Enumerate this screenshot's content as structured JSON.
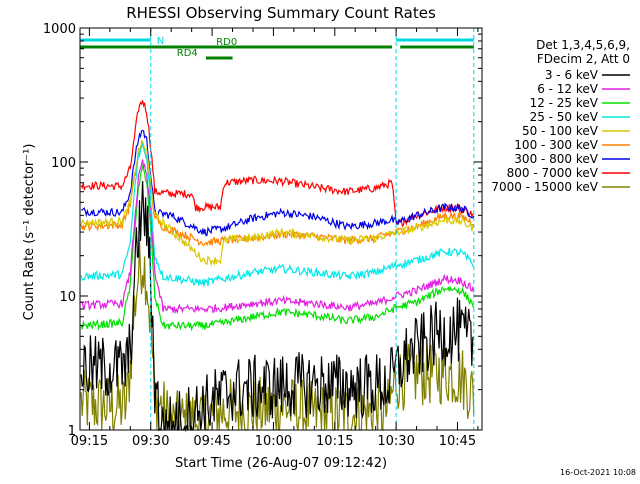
{
  "chart_data": {
    "type": "line",
    "title": "RHESSI Observing Summary Count Rates",
    "xlabel": "Start Time (26-Aug-07 09:12:42)",
    "ylabel": "Count Rate (s⁻¹ detector⁻¹)",
    "y_scale": "log",
    "ylim": [
      1,
      1000
    ],
    "xlim": [
      "09:12:42",
      "10:51:00"
    ],
    "x_ticks": [
      "09:15",
      "09:30",
      "09:45",
      "10:00",
      "10:15",
      "10:30",
      "10:45"
    ],
    "y_ticks": [
      "1",
      "10",
      "100",
      "1000"
    ],
    "grid": false,
    "legend_position": "top-right outside",
    "legend_header": [
      "Det 1,3,4,5,6,9,",
      "FDecim 2, Att 0"
    ],
    "footer_date": "16-Oct-2021 10:08",
    "flags": [
      {
        "label": "N",
        "color": "#00d8e0",
        "segments": [
          [
            "09:12:42",
            "09:30:00"
          ],
          [
            "10:30:00",
            "10:49:00"
          ]
        ]
      },
      {
        "label": "RD0",
        "color": "#008000",
        "segments": [
          [
            "09:12:42",
            "10:29:00"
          ],
          [
            "10:31:00",
            "10:49:00"
          ]
        ]
      },
      {
        "label": "RD4",
        "color": "#008000",
        "segments": [
          [
            "09:43:30",
            "09:50:00"
          ]
        ]
      }
    ],
    "night_markers": [
      "09:30:00",
      "10:30:00",
      "10:49:00"
    ],
    "series": [
      {
        "name": "3 - 6 keV",
        "color": "#000000",
        "points": [
          [
            "09:13",
            2.9
          ],
          [
            "09:24",
            2.9
          ],
          [
            "09:25",
            4
          ],
          [
            "09:26",
            12
          ],
          [
            "09:27",
            30
          ],
          [
            "09:28",
            46
          ],
          [
            "09:29",
            35
          ],
          [
            "09:30",
            14
          ],
          [
            "09:31",
            2.2
          ],
          [
            "09:33",
            1
          ],
          [
            "09:40",
            1.3
          ],
          [
            "09:50",
            2
          ],
          [
            "10:00",
            2.1
          ],
          [
            "10:10",
            2.2
          ],
          [
            "10:20",
            2.1
          ],
          [
            "10:28",
            2.2
          ],
          [
            "10:30",
            2.7
          ],
          [
            "10:32",
            3.4
          ],
          [
            "10:40",
            5.2
          ],
          [
            "10:45",
            5.5
          ],
          [
            "10:49",
            4.3
          ]
        ]
      },
      {
        "name": "6 - 12 keV",
        "color": "#e020e0",
        "points": [
          [
            "09:13",
            8.5
          ],
          [
            "09:23",
            8.8
          ],
          [
            "09:25",
            15
          ],
          [
            "09:26",
            35
          ],
          [
            "09:27",
            75
          ],
          [
            "09:28",
            100
          ],
          [
            "09:29",
            80
          ],
          [
            "09:30",
            40
          ],
          [
            "09:31",
            15
          ],
          [
            "09:33",
            8
          ],
          [
            "09:43",
            8
          ],
          [
            "09:48",
            8.2
          ],
          [
            "09:55",
            8.8
          ],
          [
            "10:02",
            9.2
          ],
          [
            "10:10",
            8.8
          ],
          [
            "10:18",
            8.2
          ],
          [
            "10:25",
            8.8
          ],
          [
            "10:30",
            10
          ],
          [
            "10:35",
            11
          ],
          [
            "10:42",
            13.5
          ],
          [
            "10:46",
            13
          ],
          [
            "10:49",
            11
          ]
        ]
      },
      {
        "name": "12 - 25 keV",
        "color": "#00e000",
        "points": [
          [
            "09:13",
            6
          ],
          [
            "09:23",
            6.3
          ],
          [
            "09:25",
            12
          ],
          [
            "09:26",
            30
          ],
          [
            "09:27",
            65
          ],
          [
            "09:28",
            90
          ],
          [
            "09:29",
            70
          ],
          [
            "09:30",
            32
          ],
          [
            "09:31",
            10
          ],
          [
            "09:33",
            6
          ],
          [
            "09:43",
            6
          ],
          [
            "09:48",
            6.3
          ],
          [
            "09:55",
            7
          ],
          [
            "10:02",
            7.6
          ],
          [
            "10:10",
            7.2
          ],
          [
            "10:18",
            6.5
          ],
          [
            "10:25",
            7
          ],
          [
            "10:30",
            8.2
          ],
          [
            "10:35",
            9
          ],
          [
            "10:42",
            11.5
          ],
          [
            "10:46",
            11
          ],
          [
            "10:49",
            8.5
          ]
        ]
      },
      {
        "name": "25 - 50 keV",
        "color": "#00e8e8",
        "points": [
          [
            "09:13",
            14
          ],
          [
            "09:23",
            14.5
          ],
          [
            "09:25",
            25
          ],
          [
            "09:26",
            60
          ],
          [
            "09:27",
            110
          ],
          [
            "09:28",
            135
          ],
          [
            "09:29",
            110
          ],
          [
            "09:30",
            50
          ],
          [
            "09:31",
            20
          ],
          [
            "09:33",
            14
          ],
          [
            "09:43",
            12.5
          ],
          [
            "09:48",
            13.5
          ],
          [
            "09:55",
            15
          ],
          [
            "10:02",
            16
          ],
          [
            "10:10",
            15
          ],
          [
            "10:18",
            14
          ],
          [
            "10:25",
            15
          ],
          [
            "10:30",
            17
          ],
          [
            "10:35",
            18.5
          ],
          [
            "10:42",
            21.5
          ],
          [
            "10:46",
            21
          ],
          [
            "10:49",
            17
          ]
        ]
      },
      {
        "name": "50 - 100 keV",
        "color": "#d8c800",
        "points": [
          [
            "09:13",
            35
          ],
          [
            "09:23",
            36
          ],
          [
            "09:25",
            50
          ],
          [
            "09:26",
            80
          ],
          [
            "09:27",
            120
          ],
          [
            "09:28",
            140
          ],
          [
            "09:29",
            120
          ],
          [
            "09:30",
            70
          ],
          [
            "09:31",
            40
          ],
          [
            "09:33",
            35
          ],
          [
            "09:43",
            18.5
          ],
          [
            "09:47",
            18.5
          ],
          [
            "09:48",
            26
          ],
          [
            "09:55",
            27
          ],
          [
            "10:02",
            30
          ],
          [
            "10:10",
            28
          ],
          [
            "10:18",
            26
          ],
          [
            "10:25",
            27
          ],
          [
            "10:30",
            30
          ],
          [
            "10:35",
            32
          ],
          [
            "10:42",
            37
          ],
          [
            "10:46",
            36
          ],
          [
            "10:49",
            32
          ]
        ]
      },
      {
        "name": "100 - 300 keV",
        "color": "#ff8000",
        "points": [
          [
            "09:13",
            33
          ],
          [
            "09:23",
            34
          ],
          [
            "09:25",
            48
          ],
          [
            "09:26",
            75
          ],
          [
            "09:27",
            115
          ],
          [
            "09:28",
            135
          ],
          [
            "09:29",
            110
          ],
          [
            "09:30",
            65
          ],
          [
            "09:31",
            38
          ],
          [
            "09:33",
            33
          ],
          [
            "09:43",
            25
          ],
          [
            "09:48",
            26
          ],
          [
            "09:55",
            27
          ],
          [
            "10:02",
            29
          ],
          [
            "10:10",
            28
          ],
          [
            "10:18",
            26
          ],
          [
            "10:25",
            27
          ],
          [
            "10:30",
            30
          ],
          [
            "10:35",
            33
          ],
          [
            "10:42",
            40
          ],
          [
            "10:46",
            39
          ],
          [
            "10:49",
            35
          ]
        ]
      },
      {
        "name": "300 - 800 keV",
        "color": "#0000e8",
        "points": [
          [
            "09:13",
            43
          ],
          [
            "09:23",
            42
          ],
          [
            "09:25",
            60
          ],
          [
            "09:26",
            100
          ],
          [
            "09:27",
            150
          ],
          [
            "09:28",
            175
          ],
          [
            "09:29",
            145
          ],
          [
            "09:30",
            80
          ],
          [
            "09:31",
            42
          ],
          [
            "09:35",
            40
          ],
          [
            "09:43",
            30
          ],
          [
            "09:48",
            32
          ],
          [
            "09:55",
            38
          ],
          [
            "10:02",
            42
          ],
          [
            "10:10",
            39
          ],
          [
            "10:18",
            33
          ],
          [
            "10:25",
            35
          ],
          [
            "10:29",
            37
          ],
          [
            "10:30",
            35
          ],
          [
            "10:35",
            40
          ],
          [
            "10:42",
            46
          ],
          [
            "10:46",
            45
          ],
          [
            "10:49",
            40
          ]
        ]
      },
      {
        "name": "800 - 7000 keV",
        "color": "#ff0000",
        "points": [
          [
            "09:13",
            67
          ],
          [
            "09:23",
            66
          ],
          [
            "09:25",
            90
          ],
          [
            "09:26",
            150
          ],
          [
            "09:27",
            250
          ],
          [
            "09:28",
            290
          ],
          [
            "09:29",
            240
          ],
          [
            "09:30",
            130
          ],
          [
            "09:31",
            60
          ],
          [
            "09:35",
            58
          ],
          [
            "09:40",
            58
          ],
          [
            "09:41",
            46
          ],
          [
            "09:47",
            46
          ],
          [
            "09:48",
            70
          ],
          [
            "09:55",
            73
          ],
          [
            "10:02",
            72
          ],
          [
            "10:10",
            65
          ],
          [
            "10:18",
            60
          ],
          [
            "10:25",
            64
          ],
          [
            "10:29",
            70
          ],
          [
            "10:30",
            34
          ],
          [
            "10:35",
            40
          ],
          [
            "10:42",
            46
          ],
          [
            "10:46",
            45
          ],
          [
            "10:49",
            40
          ]
        ]
      },
      {
        "name": "7000 - 15000 keV",
        "color": "#808000",
        "points": [
          [
            "09:13",
            1.6
          ],
          [
            "09:20",
            1.5
          ],
          [
            "09:24",
            1.5
          ],
          [
            "09:25",
            3
          ],
          [
            "09:26",
            8
          ],
          [
            "09:27",
            15
          ],
          [
            "09:28",
            19
          ],
          [
            "09:29",
            14
          ],
          [
            "09:30",
            6
          ],
          [
            "09:31",
            1.8
          ],
          [
            "09:35",
            1.1
          ],
          [
            "09:43",
            1.2
          ],
          [
            "09:48",
            1.4
          ],
          [
            "09:55",
            1.4
          ],
          [
            "10:02",
            1.5
          ],
          [
            "10:10",
            1.3
          ],
          [
            "10:20",
            1.3
          ],
          [
            "10:28",
            1.4
          ],
          [
            "10:30",
            2.4
          ],
          [
            "10:35",
            2.6
          ],
          [
            "10:42",
            2.7
          ],
          [
            "10:46",
            2.5
          ],
          [
            "10:49",
            1.8
          ]
        ]
      }
    ]
  }
}
